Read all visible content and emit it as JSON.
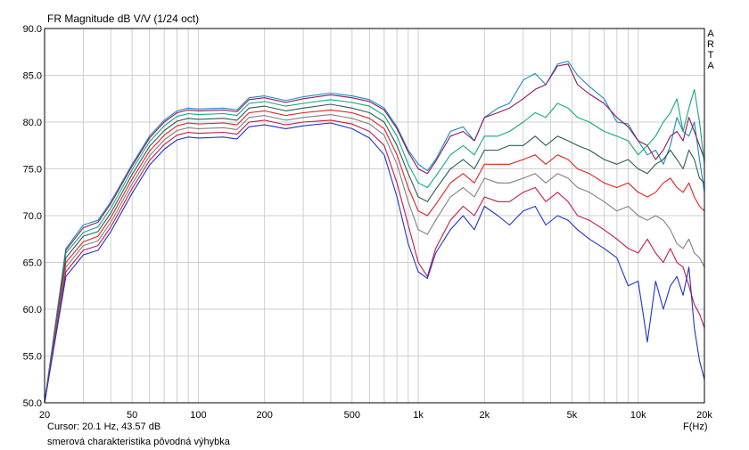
{
  "header": {
    "title": "FR Magnitude dB V/V (1/24 oct)"
  },
  "footer": {
    "cursor": "Cursor: 20.1 Hz, 43.57 dB",
    "note": "smerová charakteristika pôvodná výhybka",
    "x_unit": "F(Hz)"
  },
  "brand": {
    "letters": [
      "A",
      "R",
      "T",
      "A"
    ]
  },
  "chart_data": {
    "type": "line",
    "title": "FR Magnitude dB V/V (1/24 oct)",
    "xlabel": "F(Hz)",
    "ylabel": "",
    "xscale": "log",
    "xlim": [
      20,
      20000
    ],
    "ylim": [
      50,
      90
    ],
    "grid": true,
    "legend": "none",
    "y_ticks": [
      "90.0",
      "85.0",
      "80.0",
      "75.0",
      "70.0",
      "65.0",
      "60.0",
      "55.0",
      "50.0"
    ],
    "x_ticks": [
      {
        "f": 20,
        "label": "20"
      },
      {
        "f": 50,
        "label": "50"
      },
      {
        "f": 100,
        "label": "100"
      },
      {
        "f": 200,
        "label": "200"
      },
      {
        "f": 500,
        "label": "500"
      },
      {
        "f": 1000,
        "label": "1k"
      },
      {
        "f": 2000,
        "label": "2k"
      },
      {
        "f": 5000,
        "label": "5k"
      },
      {
        "f": 10000,
        "label": "10k"
      },
      {
        "f": 20000,
        "label": "20k"
      }
    ],
    "x": [
      20,
      25,
      30,
      35,
      40,
      50,
      60,
      70,
      80,
      90,
      100,
      130,
      150,
      170,
      200,
      250,
      300,
      400,
      500,
      600,
      700,
      800,
      900,
      1000,
      1100,
      1200,
      1400,
      1600,
      1800,
      2000,
      2300,
      2600,
      3000,
      3400,
      3800,
      4300,
      4800,
      5300,
      6000,
      7000,
      8000,
      9000,
      10000,
      11000,
      12000,
      13000,
      14000,
      15000,
      16000,
      17000,
      18000,
      19000,
      20000
    ],
    "series": [
      {
        "color": "#1a88cc",
        "values": [
          49.5,
          66.5,
          69.0,
          69.5,
          71.5,
          75.5,
          78.5,
          80.2,
          81.2,
          81.5,
          81.4,
          81.5,
          81.3,
          82.6,
          82.8,
          82.3,
          82.7,
          83.1,
          82.8,
          82.4,
          81.5,
          79.5,
          77.0,
          75.5,
          74.8,
          76.0,
          79.0,
          79.5,
          78.0,
          80.5,
          81.5,
          82.0,
          84.5,
          85.2,
          84.0,
          86.2,
          86.5,
          85.0,
          83.8,
          82.5,
          80.0,
          79.8,
          78.0,
          76.5,
          77.0,
          75.5,
          77.5,
          80.5,
          79.0,
          78.5,
          80.0,
          76.0,
          72.5
        ]
      },
      {
        "color": "#8b1a57",
        "values": [
          49.3,
          66.3,
          68.7,
          69.3,
          71.3,
          75.3,
          78.3,
          80.0,
          81.0,
          81.3,
          81.2,
          81.3,
          81.1,
          82.4,
          82.6,
          82.1,
          82.5,
          82.9,
          82.6,
          82.2,
          81.3,
          79.3,
          76.8,
          75.0,
          74.5,
          75.8,
          78.5,
          79.0,
          78.0,
          80.5,
          81.0,
          81.5,
          82.5,
          83.5,
          84.0,
          86.0,
          86.2,
          84.0,
          83.0,
          82.0,
          80.5,
          79.5,
          78.0,
          77.5,
          76.0,
          77.0,
          78.5,
          79.0,
          78.0,
          80.5,
          79.0,
          77.5,
          76.0
        ]
      },
      {
        "color": "#16a87a",
        "values": [
          49.0,
          66.0,
          68.2,
          68.8,
          70.8,
          74.9,
          77.9,
          79.6,
          80.6,
          80.9,
          80.8,
          80.9,
          80.7,
          82.0,
          82.2,
          81.7,
          82.0,
          82.4,
          82.1,
          81.7,
          80.7,
          78.5,
          75.5,
          73.5,
          73.0,
          74.2,
          76.5,
          77.5,
          76.5,
          78.5,
          78.5,
          79.0,
          80.0,
          81.0,
          80.5,
          82.0,
          81.5,
          80.5,
          80.0,
          79.0,
          78.5,
          78.0,
          76.5,
          77.5,
          78.5,
          80.0,
          81.0,
          82.5,
          79.0,
          81.5,
          83.5,
          80.0,
          75.5
        ]
      },
      {
        "color": "#2e5b5b",
        "values": [
          48.5,
          65.5,
          67.8,
          68.3,
          70.3,
          74.4,
          77.4,
          79.1,
          80.1,
          80.4,
          80.3,
          80.4,
          80.2,
          81.5,
          81.7,
          81.2,
          81.5,
          81.9,
          81.5,
          81.0,
          80.0,
          77.5,
          74.5,
          72.0,
          71.5,
          72.8,
          75.0,
          76.0,
          75.0,
          77.0,
          77.0,
          77.5,
          77.5,
          78.5,
          77.5,
          78.5,
          78.0,
          77.5,
          77.0,
          76.0,
          75.5,
          76.0,
          75.0,
          74.5,
          75.5,
          76.0,
          77.0,
          76.0,
          75.0,
          77.0,
          76.0,
          74.0,
          73.5
        ]
      },
      {
        "color": "#dd2222",
        "values": [
          48.0,
          65.0,
          67.2,
          67.8,
          69.8,
          73.9,
          76.9,
          78.6,
          79.6,
          79.9,
          79.8,
          79.9,
          79.7,
          81.0,
          81.2,
          80.7,
          81.0,
          81.3,
          81.0,
          80.4,
          79.3,
          76.5,
          73.0,
          70.5,
          70.0,
          71.2,
          73.5,
          74.5,
          73.5,
          75.5,
          75.5,
          75.5,
          76.0,
          76.5,
          75.5,
          76.5,
          76.0,
          75.0,
          74.5,
          73.5,
          73.0,
          73.5,
          72.5,
          72.0,
          72.5,
          73.5,
          74.0,
          73.0,
          72.5,
          73.5,
          72.0,
          71.0,
          70.5
        ]
      },
      {
        "color": "#808080",
        "values": [
          47.5,
          64.5,
          66.8,
          67.3,
          69.3,
          73.4,
          76.4,
          78.1,
          79.1,
          79.4,
          79.3,
          79.4,
          79.2,
          80.5,
          80.7,
          80.2,
          80.5,
          80.8,
          80.4,
          79.8,
          78.6,
          75.5,
          71.5,
          68.5,
          68.0,
          69.5,
          72.0,
          73.0,
          72.0,
          74.0,
          73.5,
          73.5,
          74.0,
          74.5,
          73.5,
          74.5,
          74.0,
          73.0,
          72.5,
          71.5,
          70.5,
          71.0,
          70.0,
          69.5,
          70.0,
          69.5,
          68.5,
          67.0,
          66.5,
          67.5,
          66.0,
          65.5,
          64.5
        ]
      },
      {
        "color": "#c4194a",
        "values": [
          47.0,
          64.0,
          66.3,
          66.8,
          68.8,
          72.9,
          75.9,
          77.6,
          78.6,
          78.9,
          78.8,
          78.9,
          78.7,
          80.0,
          80.2,
          79.7,
          80.0,
          80.2,
          79.8,
          79.0,
          77.5,
          73.5,
          69.0,
          65.0,
          63.5,
          66.5,
          69.5,
          71.0,
          70.0,
          72.0,
          71.5,
          71.5,
          72.5,
          73.0,
          71.5,
          72.5,
          71.5,
          70.0,
          69.5,
          68.5,
          67.5,
          66.5,
          66.0,
          67.5,
          66.0,
          65.0,
          66.5,
          65.0,
          64.5,
          62.5,
          60.5,
          59.5,
          58.0
        ]
      },
      {
        "color": "#1f33cc",
        "values": [
          46.5,
          63.5,
          65.8,
          66.3,
          68.3,
          72.4,
          75.4,
          77.1,
          78.1,
          78.4,
          78.3,
          78.4,
          78.2,
          79.5,
          79.7,
          79.3,
          79.6,
          79.9,
          79.3,
          78.3,
          76.5,
          72.0,
          67.0,
          64.0,
          63.3,
          66.0,
          68.5,
          70.0,
          68.5,
          71.0,
          70.0,
          69.0,
          70.5,
          71.0,
          69.0,
          70.0,
          69.5,
          68.5,
          67.5,
          66.5,
          65.5,
          62.5,
          63.0,
          56.5,
          63.0,
          60.0,
          62.5,
          63.5,
          61.5,
          64.5,
          58.0,
          54.5,
          52.5
        ]
      }
    ]
  }
}
